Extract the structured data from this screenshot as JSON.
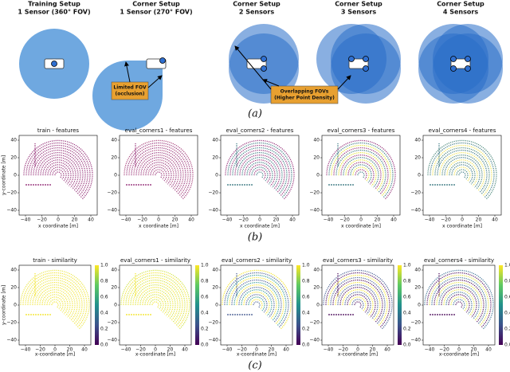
{
  "panel_a": {
    "diagrams": [
      {
        "title_line1": "Training Setup",
        "title_line2": "1 Sensor (360° FOV)"
      },
      {
        "title_line1": "Corner Setup",
        "title_line2": "1 Sensor (270° FOV)"
      },
      {
        "title_line1": "Corner Setup",
        "title_line2": "2 Sensors"
      },
      {
        "title_line1": "Corner Setup",
        "title_line2": "3 Sensors"
      },
      {
        "title_line1": "Corner Setup",
        "title_line2": "4 Sensors"
      }
    ],
    "annotation_occlusion": [
      "Limited FOV",
      "(occlusion)"
    ],
    "annotation_overlap": [
      "Overlapping FOVs",
      "(Higher Point Density)"
    ],
    "label": "(a)"
  },
  "panel_b": {
    "titles": [
      "train - features",
      "eval_corners1 - features",
      "eval_corners2 - features",
      "eval_corners3 - features",
      "eval_corners4 - features"
    ],
    "xticks": [
      "−40",
      "−20",
      "0",
      "20",
      "40"
    ],
    "yticks": [
      "40",
      "20",
      "0",
      "−20",
      "−40"
    ],
    "xlabel": "x coordinate [m]",
    "ylabel": "y-coordinate [m]",
    "label": "(b)"
  },
  "panel_c": {
    "titles": [
      "train - similarity",
      "eval_corners1 - similarity",
      "eval_corners2 - similarity",
      "eval_corners3 - similarity",
      "eval_corners4 - similarity"
    ],
    "xticks": [
      "−40",
      "−20",
      "0",
      "20",
      "40"
    ],
    "yticks": [
      "40",
      "20",
      "0",
      "−20",
      "−40"
    ],
    "colorbar_ticks": [
      "0.0",
      "0.2",
      "0.4",
      "0.6",
      "0.8",
      "1.0"
    ],
    "xlabel": "x-coordinate [m]",
    "ylabel": "y-coordinate [m]",
    "label": "(c)"
  }
}
